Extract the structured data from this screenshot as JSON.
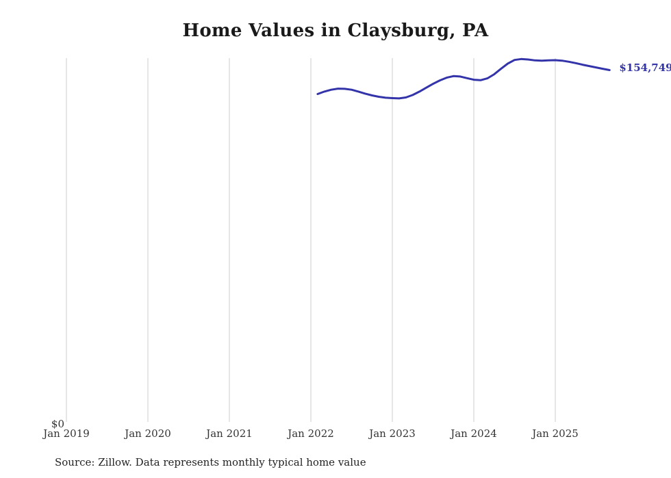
{
  "chart": {
    "title": "Home Values in Claysburg, PA",
    "y_zero_label": "$0",
    "end_label": "$154,749",
    "source": "Source: Zillow. Data represents monthly typical home value"
  },
  "chart_data": {
    "type": "line",
    "title": "Home Values in Claysburg, PA",
    "series_name": "Monthly typical home value",
    "unit": "USD",
    "start_month": "2022-02",
    "x_tick_labels": [
      "Jan 2019",
      "Jan 2020",
      "Jan 2021",
      "Jan 2022",
      "Jan 2023",
      "Jan 2024",
      "Jan 2025"
    ],
    "ylim": [
      0,
      160000
    ],
    "grid": "vertical-only",
    "legend": "none",
    "line_color": "#3333aa",
    "grid_color": "#cccccc",
    "end_value": 154749,
    "values": [
      144200,
      145300,
      146100,
      146600,
      146500,
      146100,
      145300,
      144400,
      143600,
      143000,
      142600,
      142400,
      142300,
      142700,
      143800,
      145300,
      147000,
      148700,
      150200,
      151400,
      152100,
      151900,
      151200,
      150500,
      150300,
      151100,
      152900,
      155300,
      157600,
      159200,
      159600,
      159400,
      159000,
      158900,
      159000,
      159100,
      158900,
      158400,
      157800,
      157100,
      156500,
      155900,
      155300,
      154749
    ]
  }
}
